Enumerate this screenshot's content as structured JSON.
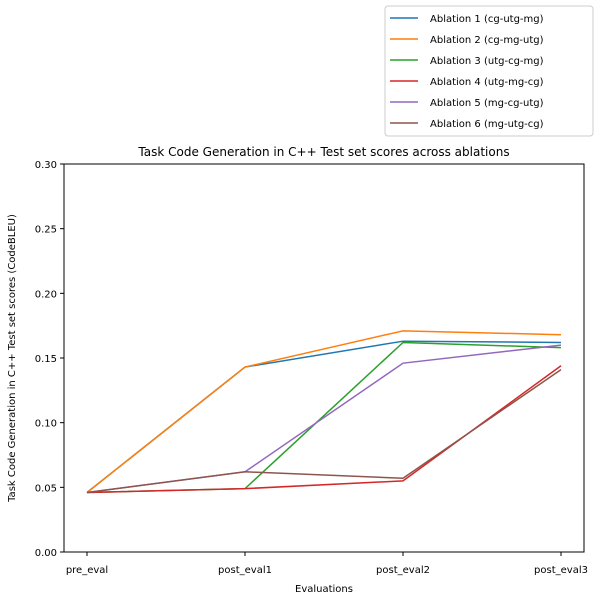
{
  "chart_data": {
    "type": "line",
    "title": "Task Code Generation in C++ Test set scores across ablations",
    "xlabel": "Evaluations",
    "ylabel": "Task Code Generation in C++ Test set scores (CodeBLEU)",
    "categories": [
      "pre_eval",
      "post_eval1",
      "post_eval2",
      "post_eval3"
    ],
    "ylim": [
      0.0,
      0.3
    ],
    "yticks": [
      "0.00",
      "0.05",
      "0.10",
      "0.15",
      "0.20",
      "0.25",
      "0.30"
    ],
    "grid": false,
    "legend_position": "top-right",
    "series": [
      {
        "name": "Ablation 1 (cg-utg-mg)",
        "color": "#1f77b4",
        "values": [
          0.046,
          0.143,
          0.163,
          0.162
        ]
      },
      {
        "name": "Ablation 2 (cg-mg-utg)",
        "color": "#ff7f0e",
        "values": [
          0.046,
          0.143,
          0.171,
          0.168
        ]
      },
      {
        "name": "Ablation 3 (utg-cg-mg)",
        "color": "#2ca02c",
        "values": [
          0.046,
          0.049,
          0.162,
          0.158
        ]
      },
      {
        "name": "Ablation 4 (utg-mg-cg)",
        "color": "#d62728",
        "values": [
          0.046,
          0.049,
          0.055,
          0.144
        ]
      },
      {
        "name": "Ablation 5 (mg-cg-utg)",
        "color": "#9467bd",
        "values": [
          0.046,
          0.062,
          0.146,
          0.16
        ]
      },
      {
        "name": "Ablation 6 (mg-utg-cg)",
        "color": "#8c564b",
        "values": [
          0.046,
          0.062,
          0.057,
          0.141
        ]
      }
    ]
  }
}
